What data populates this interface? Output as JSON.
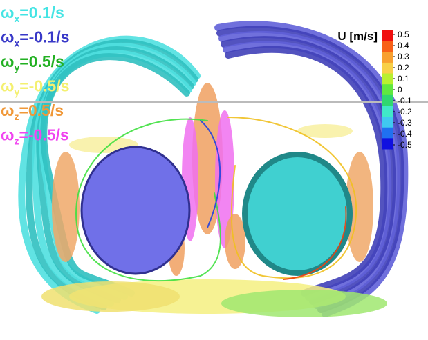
{
  "legend": [
    {
      "symbol": "ω",
      "sub": "x",
      "text": "=0.1/s",
      "color": "#44e4e4"
    },
    {
      "symbol": "ω",
      "sub": "x",
      "text": "=-0.1/s",
      "color": "#3838c8"
    },
    {
      "symbol": "ω",
      "sub": "y",
      "text": "=0.5/s",
      "color": "#22b022"
    },
    {
      "symbol": "ω",
      "sub": "y",
      "text": "=-0.5/s",
      "color": "#f4f070"
    },
    {
      "symbol": "ω",
      "sub": "z",
      "text": "=0.5/s",
      "color": "#f09838"
    },
    {
      "symbol": "ω",
      "sub": "z",
      "text": "=-0.5/s",
      "color": "#f044f0"
    }
  ],
  "colorbar": {
    "title": "U [m/s]",
    "ticks": [
      0.5,
      0.4,
      0.3,
      0.2,
      0.1,
      0,
      -0.1,
      -0.2,
      -0.3,
      -0.4,
      -0.5
    ],
    "colors": [
      "#f01010",
      "#f86018",
      "#f8a030",
      "#f8d048",
      "#b8f030",
      "#60e840",
      "#30d870",
      "#40e8c8",
      "#40c8f0",
      "#2070f0",
      "#1010e0"
    ]
  }
}
